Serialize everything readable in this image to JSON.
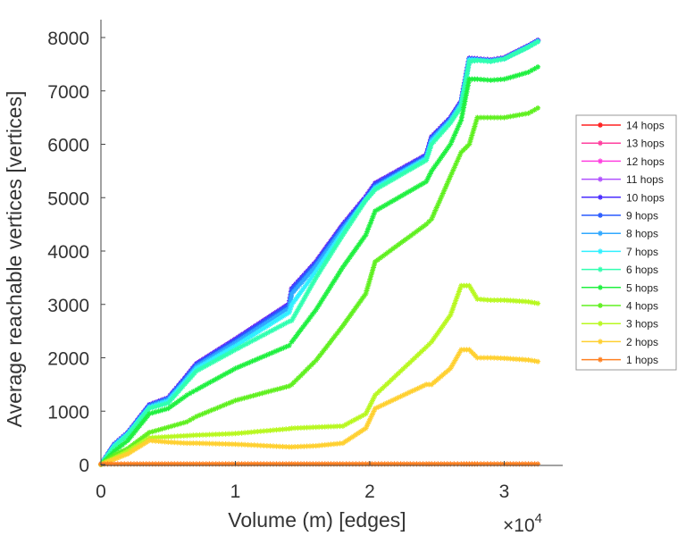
{
  "chart_data": {
    "type": "line",
    "title": "",
    "xlabel": "Volume (m) [edges]",
    "ylabel": "Average reachable vertices [vertices]",
    "x_multiplier_label": "×10",
    "x_multiplier_exp": "4",
    "xlim": [
      0,
      34000
    ],
    "ylim": [
      0,
      8000
    ],
    "xticks": [
      0,
      10000,
      20000,
      30000
    ],
    "xtick_labels": [
      "0",
      "1",
      "2",
      "3"
    ],
    "yticks": [
      0,
      1000,
      2000,
      3000,
      4000,
      5000,
      6000,
      7000,
      8000
    ],
    "ytick_labels": [
      "0",
      "1000",
      "2000",
      "3000",
      "4000",
      "5000",
      "6000",
      "7000",
      "8000"
    ],
    "grid": false,
    "legend_position": "right",
    "marker": "*",
    "x": [
      0,
      1000,
      2000,
      3600,
      5000,
      6400,
      7100,
      10000,
      14000,
      14200,
      16000,
      18000,
      19700,
      20400,
      24200,
      24600,
      26000,
      26800,
      27400,
      28000,
      29000,
      30000,
      31800,
      32500
    ],
    "series": [
      {
        "name": "14 hops",
        "color": "#ff2020",
        "values": [
          0,
          385,
          600,
          1120,
          1250,
          1670,
          1890,
          2350,
          3010,
          3300,
          3800,
          4500,
          5020,
          5270,
          5800,
          6140,
          6500,
          6810,
          7610,
          7600,
          7580,
          7620,
          7850,
          7950
        ]
      },
      {
        "name": "13 hops",
        "color": "#ff3f9f",
        "values": [
          0,
          385,
          600,
          1120,
          1250,
          1670,
          1890,
          2350,
          3010,
          3300,
          3800,
          4500,
          5020,
          5270,
          5800,
          6140,
          6500,
          6810,
          7610,
          7600,
          7580,
          7620,
          7850,
          7950
        ]
      },
      {
        "name": "12 hops",
        "color": "#ff40e0",
        "values": [
          0,
          385,
          600,
          1120,
          1250,
          1670,
          1890,
          2350,
          3010,
          3300,
          3800,
          4500,
          5020,
          5270,
          5800,
          6140,
          6500,
          6810,
          7610,
          7600,
          7580,
          7620,
          7850,
          7950
        ]
      },
      {
        "name": "11 hops",
        "color": "#b050ff",
        "values": [
          0,
          385,
          600,
          1120,
          1250,
          1670,
          1890,
          2350,
          3010,
          3300,
          3800,
          4500,
          5020,
          5270,
          5800,
          6140,
          6500,
          6810,
          7610,
          7600,
          7580,
          7620,
          7850,
          7950
        ]
      },
      {
        "name": "10 hops",
        "color": "#4a2cff",
        "values": [
          0,
          385,
          600,
          1120,
          1250,
          1670,
          1890,
          2350,
          3010,
          3300,
          3800,
          4500,
          5020,
          5270,
          5800,
          6140,
          6500,
          6810,
          7610,
          7600,
          7580,
          7620,
          7850,
          7950
        ]
      },
      {
        "name": "9 hops",
        "color": "#2a5cff",
        "values": [
          0,
          380,
          595,
          1110,
          1240,
          1650,
          1870,
          2320,
          2980,
          3270,
          3770,
          4470,
          4990,
          5240,
          5780,
          6120,
          6480,
          6790,
          7600,
          7590,
          7570,
          7610,
          7840,
          7940
        ]
      },
      {
        "name": "8 hops",
        "color": "#30a8ff",
        "values": [
          0,
          370,
          585,
          1090,
          1220,
          1620,
          1840,
          2280,
          2930,
          3200,
          3720,
          4420,
          4950,
          5200,
          5750,
          6090,
          6460,
          6770,
          7590,
          7580,
          7560,
          7600,
          7830,
          7930
        ]
      },
      {
        "name": "7 hops",
        "color": "#30f0ff",
        "values": [
          0,
          355,
          570,
          1070,
          1190,
          1590,
          1800,
          2220,
          2850,
          3000,
          3620,
          4360,
          4970,
          5180,
          5730,
          6050,
          6430,
          6740,
          7580,
          7580,
          7560,
          7600,
          7830,
          7930
        ]
      },
      {
        "name": "6 hops",
        "color": "#30ffb0",
        "values": [
          0,
          330,
          550,
          1050,
          1150,
          1550,
          1750,
          2150,
          2680,
          2700,
          3500,
          4300,
          4950,
          5150,
          5700,
          6000,
          6400,
          6700,
          7550,
          7570,
          7550,
          7600,
          7820,
          7920
        ]
      },
      {
        "name": "5 hops",
        "color": "#20f040",
        "values": [
          0,
          250,
          450,
          950,
          1050,
          1300,
          1400,
          1800,
          2230,
          2300,
          2900,
          3700,
          4300,
          4750,
          5300,
          5500,
          6000,
          6450,
          7220,
          7220,
          7200,
          7220,
          7350,
          7450
        ]
      },
      {
        "name": "4 hops",
        "color": "#60f020",
        "values": [
          0,
          180,
          300,
          600,
          700,
          800,
          900,
          1200,
          1470,
          1500,
          1950,
          2600,
          3200,
          3800,
          4500,
          4600,
          5400,
          5850,
          6000,
          6500,
          6500,
          6500,
          6580,
          6680
        ]
      },
      {
        "name": "3 hops",
        "color": "#b8f820",
        "values": [
          0,
          120,
          250,
          500,
          520,
          540,
          550,
          580,
          670,
          680,
          700,
          720,
          950,
          1300,
          2200,
          2300,
          2800,
          3350,
          3350,
          3100,
          3080,
          3080,
          3050,
          3020
        ]
      },
      {
        "name": "2 hops",
        "color": "#ffd030",
        "values": [
          0,
          100,
          200,
          450,
          420,
          400,
          400,
          380,
          330,
          330,
          350,
          400,
          680,
          1050,
          1500,
          1500,
          1800,
          2150,
          2150,
          2000,
          2000,
          1990,
          1960,
          1930
        ]
      },
      {
        "name": "1 hops",
        "color": "#ff8020",
        "values": [
          10,
          10,
          10,
          10,
          10,
          10,
          10,
          10,
          10,
          10,
          10,
          10,
          10,
          10,
          10,
          10,
          10,
          10,
          10,
          10,
          10,
          10,
          10,
          10
        ]
      }
    ]
  }
}
